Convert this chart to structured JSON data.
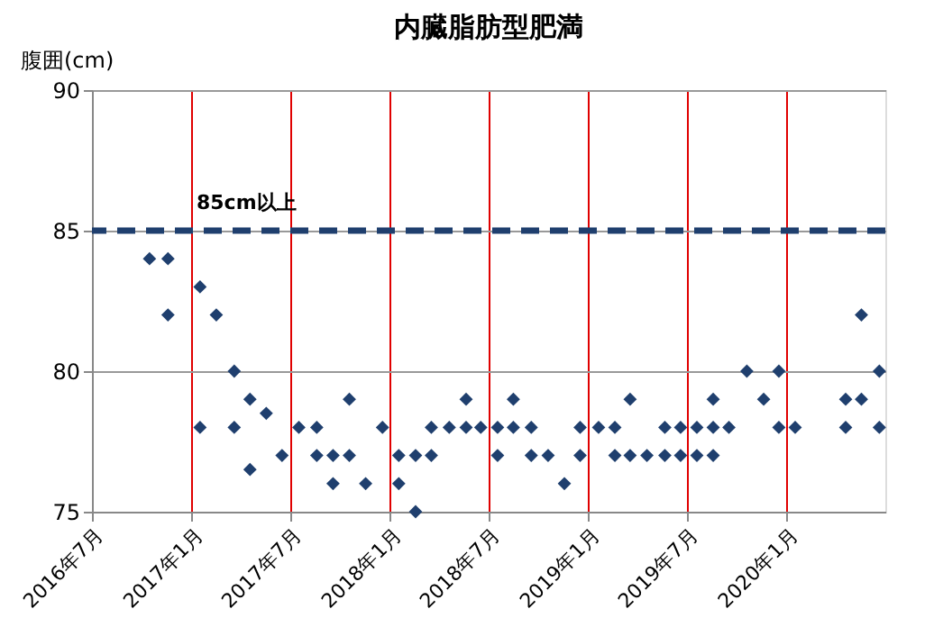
{
  "chart_data": {
    "type": "scatter",
    "title": "内臓脂肪型肥満",
    "ylabel": "腹囲(cm)",
    "x": [
      "2016-10-15",
      "2016-11-18",
      "2016-11-18",
      "2017-01-16",
      "2017-01-16",
      "2017-02-15",
      "2017-03-20",
      "2017-03-20",
      "2017-04-18",
      "2017-04-18",
      "2017-05-18",
      "2017-06-16",
      "2017-07-17",
      "2017-08-19",
      "2017-08-19",
      "2017-09-18",
      "2017-09-18",
      "2017-10-18",
      "2017-10-18",
      "2017-11-17",
      "2017-12-18",
      "2018-01-17",
      "2018-01-17",
      "2018-02-17",
      "2018-02-17",
      "2018-03-18",
      "2018-03-18",
      "2018-04-20",
      "2018-05-21",
      "2018-05-21",
      "2018-06-17",
      "2018-07-18",
      "2018-07-18",
      "2018-08-16",
      "2018-08-16",
      "2018-09-18",
      "2018-09-18",
      "2018-10-19",
      "2018-11-18",
      "2018-12-17",
      "2018-12-17",
      "2019-01-20",
      "2019-02-19",
      "2019-02-19",
      "2019-03-19",
      "2019-03-19",
      "2019-04-19",
      "2019-05-22",
      "2019-05-22",
      "2019-06-20",
      "2019-06-20",
      "2019-07-20",
      "2019-07-20",
      "2019-08-19",
      "2019-08-19",
      "2019-08-19",
      "2019-09-17",
      "2019-10-20",
      "2019-11-20",
      "2019-12-18",
      "2019-12-18",
      "2020-01-17",
      "2020-04-19",
      "2020-04-19",
      "2020-05-18",
      "2020-05-18",
      "2020-06-20",
      "2020-06-20"
    ],
    "series": [
      {
        "color": "#1f3f6e",
        "values": [
          84,
          84,
          82,
          83,
          78,
          82,
          80,
          78,
          79,
          76.5,
          78.5,
          77,
          78,
          78,
          77,
          77,
          76,
          79,
          77,
          76,
          78,
          77,
          76,
          77,
          75,
          78,
          77,
          78,
          79,
          78,
          78,
          78,
          77,
          79,
          78,
          78,
          77,
          77,
          76,
          78,
          77,
          78,
          78,
          77,
          79,
          77,
          77,
          78,
          77,
          78,
          77,
          78,
          77,
          79,
          78,
          77,
          78,
          80,
          79,
          80,
          78,
          78,
          79,
          78,
          82,
          79,
          80,
          78
        ]
      }
    ],
    "xlim": [
      "2016-07",
      "2020-07"
    ],
    "xticks": [
      {
        "value": "2016-07",
        "label": "2016年7月"
      },
      {
        "value": "2017-01",
        "label": "2017年1月"
      },
      {
        "value": "2017-07",
        "label": "2017年7月"
      },
      {
        "value": "2018-01",
        "label": "2018年1月"
      },
      {
        "value": "2018-07",
        "label": "2018年7月"
      },
      {
        "value": "2019-01",
        "label": "2019年1月"
      },
      {
        "value": "2019-07",
        "label": "2019年7月"
      },
      {
        "value": "2020-01",
        "label": "2020年1月"
      }
    ],
    "ylim": [
      75,
      90
    ],
    "yticks": [
      75,
      80,
      85,
      90
    ],
    "grid": true,
    "marker": "diamond",
    "legend": false,
    "ref_lines": [
      {
        "axis": "y",
        "value": 85,
        "label": "85cm以上",
        "color": "#1f3f6e",
        "line_style": "dashed"
      }
    ]
  }
}
